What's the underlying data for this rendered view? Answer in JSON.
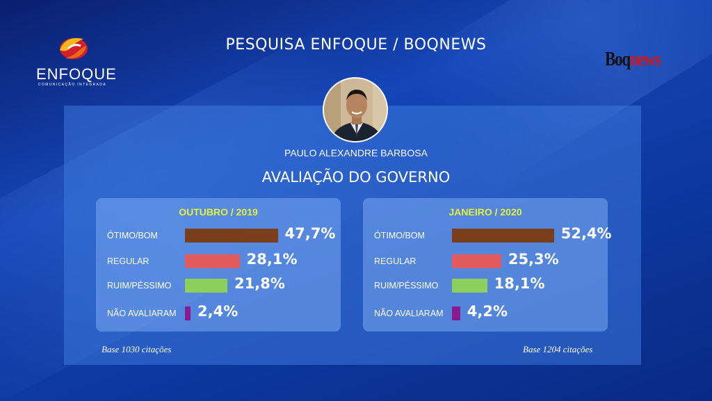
{
  "header": {
    "title": "PESQUISA ENFOQUE / BOQNEWS",
    "logo_left_word": "ENFOQUE",
    "logo_left_sub": "COMUNICAÇÃO INTEGRADA",
    "logo_right_part1": "Boq",
    "logo_right_part2": "news"
  },
  "subject": {
    "name": "PAULO ALEXANDRE BARBOSA",
    "section_title": "AVALIAÇÃO DO GOVERNO"
  },
  "colors": {
    "otimo_bom": "#7a3e1a",
    "regular": "#e05a5e",
    "ruim_pessimo": "#8ccf5a",
    "nao_avaliaram": "#8a1a8f",
    "card_title": "#e8f23a"
  },
  "chart_data": [
    {
      "type": "bar",
      "title": "OUTUBRO / 2019",
      "categories": [
        "ÓTIMO/BOM",
        "REGULAR",
        "RUIM/PÉSSIMO",
        "NÃO AVALIARAM"
      ],
      "values": [
        47.7,
        28.1,
        21.8,
        2.4
      ],
      "value_labels": [
        "47,7%",
        "28,1%",
        "21,8%",
        "2,4%"
      ],
      "note": "Base 1030 citações",
      "xlim": [
        0,
        55
      ]
    },
    {
      "type": "bar",
      "title": "JANEIRO / 2020",
      "categories": [
        "ÓTIMO/BOM",
        "REGULAR",
        "RUIM/PÉSSIMO",
        "NÃO AVALIARAM"
      ],
      "values": [
        52.4,
        25.3,
        18.1,
        4.2
      ],
      "value_labels": [
        "52,4%",
        "25,3%",
        "18,1%",
        "4,2%"
      ],
      "note": "Base 1204 citações",
      "xlim": [
        0,
        55
      ]
    }
  ]
}
